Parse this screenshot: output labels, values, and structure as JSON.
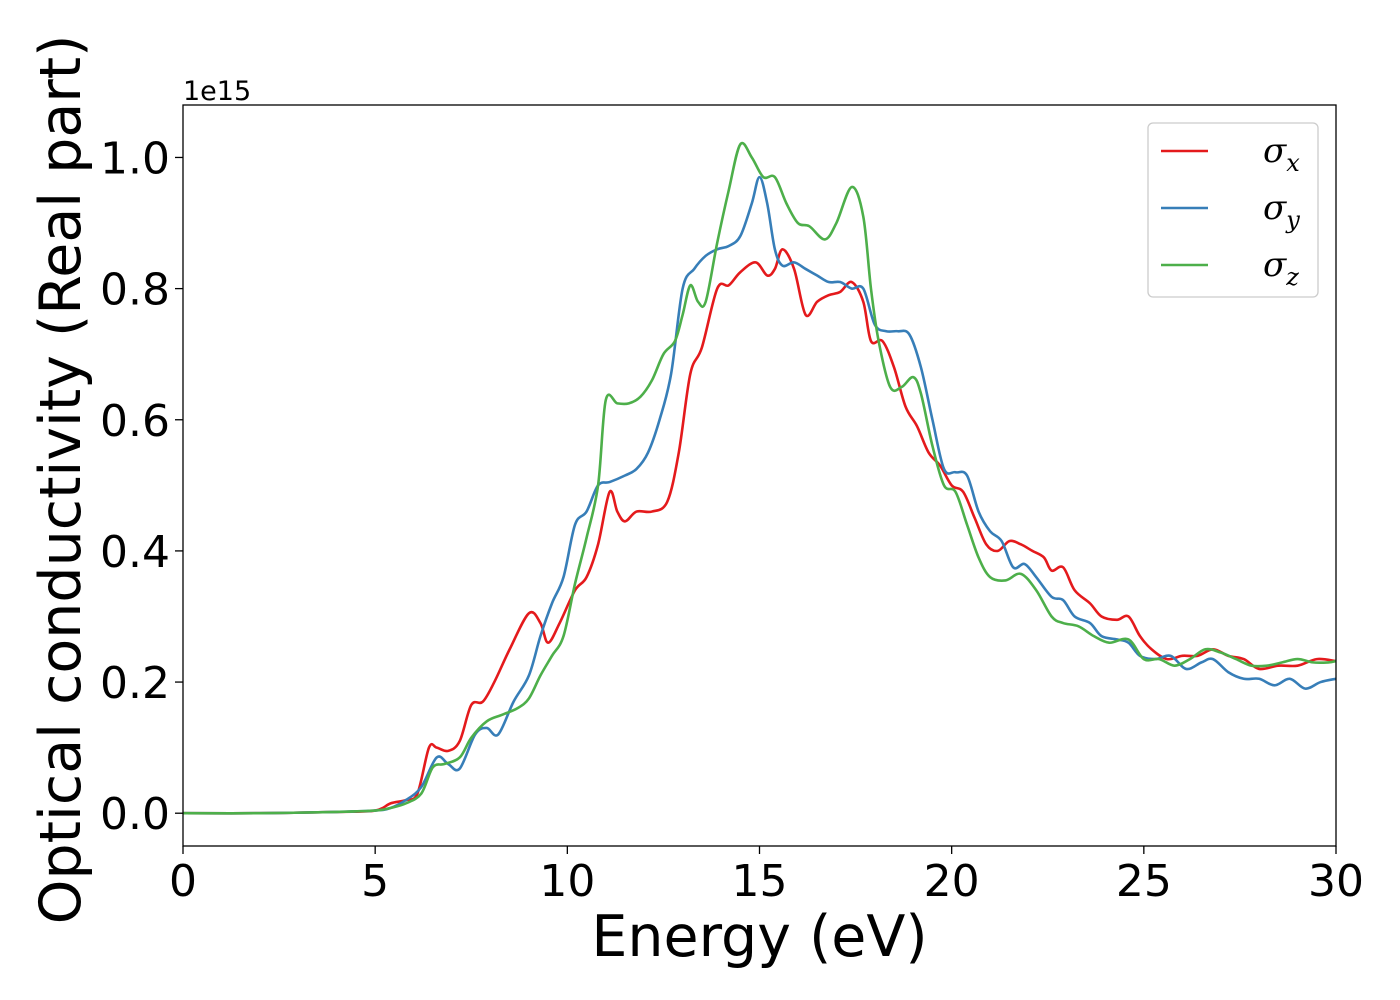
{
  "chart_data": {
    "type": "line",
    "title": "",
    "xlabel": "Energy (eV)",
    "ylabel": "Optical conductivity (Real part)",
    "y_offset_label": "1e15",
    "y_scale": 1000000000000000.0,
    "xlim": [
      0,
      30
    ],
    "ylim": [
      -0.05,
      1.08
    ],
    "xticks": [
      0,
      5,
      10,
      15,
      20,
      25,
      30
    ],
    "xtick_labels": [
      "0",
      "5",
      "10",
      "15",
      "20",
      "25",
      "30"
    ],
    "yticks": [
      0.0,
      0.2,
      0.4,
      0.6,
      0.8,
      1.0
    ],
    "ytick_labels": [
      "0.0",
      "0.2",
      "0.4",
      "0.6",
      "0.8",
      "1.0"
    ],
    "grid": false,
    "legend_position": "top-right",
    "series": [
      {
        "name": "σx",
        "label_base": "σ",
        "label_sub": "x",
        "color": "#e41a1c",
        "points": [
          [
            0,
            0
          ],
          [
            2,
            0
          ],
          [
            4,
            0.002
          ],
          [
            5,
            0.004
          ],
          [
            5.4,
            0.015
          ],
          [
            5.8,
            0.02
          ],
          [
            6.1,
            0.03
          ],
          [
            6.4,
            0.1
          ],
          [
            6.6,
            0.1
          ],
          [
            6.9,
            0.095
          ],
          [
            7.2,
            0.11
          ],
          [
            7.5,
            0.165
          ],
          [
            7.8,
            0.17
          ],
          [
            8.1,
            0.2
          ],
          [
            8.5,
            0.25
          ],
          [
            9.0,
            0.305
          ],
          [
            9.3,
            0.29
          ],
          [
            9.5,
            0.26
          ],
          [
            9.8,
            0.29
          ],
          [
            10.2,
            0.34
          ],
          [
            10.5,
            0.36
          ],
          [
            10.8,
            0.41
          ],
          [
            11.1,
            0.49
          ],
          [
            11.3,
            0.46
          ],
          [
            11.5,
            0.445
          ],
          [
            11.8,
            0.46
          ],
          [
            12.2,
            0.46
          ],
          [
            12.6,
            0.475
          ],
          [
            12.9,
            0.55
          ],
          [
            13.2,
            0.67
          ],
          [
            13.5,
            0.71
          ],
          [
            13.9,
            0.8
          ],
          [
            14.2,
            0.805
          ],
          [
            14.5,
            0.825
          ],
          [
            14.9,
            0.84
          ],
          [
            15.2,
            0.82
          ],
          [
            15.4,
            0.83
          ],
          [
            15.6,
            0.86
          ],
          [
            15.9,
            0.83
          ],
          [
            16.2,
            0.76
          ],
          [
            16.5,
            0.78
          ],
          [
            16.8,
            0.79
          ],
          [
            17.1,
            0.795
          ],
          [
            17.4,
            0.81
          ],
          [
            17.7,
            0.78
          ],
          [
            17.9,
            0.72
          ],
          [
            18.2,
            0.72
          ],
          [
            18.5,
            0.68
          ],
          [
            18.8,
            0.62
          ],
          [
            19.1,
            0.59
          ],
          [
            19.4,
            0.55
          ],
          [
            19.7,
            0.53
          ],
          [
            20.0,
            0.5
          ],
          [
            20.3,
            0.49
          ],
          [
            20.6,
            0.45
          ],
          [
            20.9,
            0.41
          ],
          [
            21.2,
            0.4
          ],
          [
            21.5,
            0.415
          ],
          [
            21.8,
            0.41
          ],
          [
            22.1,
            0.4
          ],
          [
            22.4,
            0.39
          ],
          [
            22.6,
            0.37
          ],
          [
            22.9,
            0.375
          ],
          [
            23.2,
            0.34
          ],
          [
            23.6,
            0.32
          ],
          [
            23.9,
            0.3
          ],
          [
            24.3,
            0.295
          ],
          [
            24.6,
            0.3
          ],
          [
            24.9,
            0.27
          ],
          [
            25.2,
            0.25
          ],
          [
            25.6,
            0.235
          ],
          [
            26.0,
            0.24
          ],
          [
            26.4,
            0.24
          ],
          [
            26.8,
            0.25
          ],
          [
            27.2,
            0.24
          ],
          [
            27.6,
            0.235
          ],
          [
            28.0,
            0.22
          ],
          [
            28.5,
            0.225
          ],
          [
            29.0,
            0.225
          ],
          [
            29.5,
            0.235
          ],
          [
            30,
            0.232
          ]
        ]
      },
      {
        "name": "σy",
        "label_base": "σ",
        "label_sub": "y",
        "color": "#377eb8",
        "points": [
          [
            0,
            0
          ],
          [
            2,
            0
          ],
          [
            4,
            0.002
          ],
          [
            5,
            0.004
          ],
          [
            5.4,
            0.008
          ],
          [
            5.8,
            0.02
          ],
          [
            6.2,
            0.04
          ],
          [
            6.6,
            0.085
          ],
          [
            6.9,
            0.075
          ],
          [
            7.2,
            0.068
          ],
          [
            7.6,
            0.12
          ],
          [
            7.9,
            0.13
          ],
          [
            8.2,
            0.12
          ],
          [
            8.6,
            0.17
          ],
          [
            9.0,
            0.21
          ],
          [
            9.3,
            0.27
          ],
          [
            9.6,
            0.32
          ],
          [
            9.9,
            0.36
          ],
          [
            10.2,
            0.44
          ],
          [
            10.5,
            0.46
          ],
          [
            10.8,
            0.5
          ],
          [
            11.1,
            0.505
          ],
          [
            11.5,
            0.515
          ],
          [
            11.8,
            0.525
          ],
          [
            12.1,
            0.55
          ],
          [
            12.4,
            0.6
          ],
          [
            12.7,
            0.67
          ],
          [
            13.0,
            0.8
          ],
          [
            13.3,
            0.83
          ],
          [
            13.6,
            0.85
          ],
          [
            13.9,
            0.86
          ],
          [
            14.2,
            0.865
          ],
          [
            14.5,
            0.88
          ],
          [
            14.8,
            0.93
          ],
          [
            15.0,
            0.97
          ],
          [
            15.2,
            0.93
          ],
          [
            15.4,
            0.86
          ],
          [
            15.6,
            0.835
          ],
          [
            15.9,
            0.84
          ],
          [
            16.2,
            0.83
          ],
          [
            16.5,
            0.82
          ],
          [
            16.8,
            0.81
          ],
          [
            17.1,
            0.81
          ],
          [
            17.4,
            0.8
          ],
          [
            17.7,
            0.8
          ],
          [
            18.0,
            0.745
          ],
          [
            18.3,
            0.735
          ],
          [
            18.6,
            0.735
          ],
          [
            18.9,
            0.73
          ],
          [
            19.2,
            0.68
          ],
          [
            19.5,
            0.6
          ],
          [
            19.8,
            0.525
          ],
          [
            20.1,
            0.52
          ],
          [
            20.4,
            0.515
          ],
          [
            20.7,
            0.46
          ],
          [
            21.0,
            0.43
          ],
          [
            21.3,
            0.415
          ],
          [
            21.6,
            0.375
          ],
          [
            21.9,
            0.38
          ],
          [
            22.2,
            0.36
          ],
          [
            22.6,
            0.33
          ],
          [
            22.9,
            0.325
          ],
          [
            23.2,
            0.3
          ],
          [
            23.6,
            0.29
          ],
          [
            23.9,
            0.27
          ],
          [
            24.3,
            0.265
          ],
          [
            24.6,
            0.26
          ],
          [
            24.9,
            0.24
          ],
          [
            25.3,
            0.235
          ],
          [
            25.7,
            0.24
          ],
          [
            26.1,
            0.22
          ],
          [
            26.5,
            0.23
          ],
          [
            26.8,
            0.235
          ],
          [
            27.2,
            0.215
          ],
          [
            27.6,
            0.205
          ],
          [
            28.0,
            0.205
          ],
          [
            28.4,
            0.195
          ],
          [
            28.8,
            0.205
          ],
          [
            29.2,
            0.19
          ],
          [
            29.6,
            0.2
          ],
          [
            30,
            0.205
          ]
        ]
      },
      {
        "name": "σz",
        "label_base": "σ",
        "label_sub": "z",
        "color": "#4daf4a",
        "points": [
          [
            0,
            0
          ],
          [
            2,
            0
          ],
          [
            4,
            0.002
          ],
          [
            5,
            0.004
          ],
          [
            5.4,
            0.008
          ],
          [
            5.8,
            0.015
          ],
          [
            6.2,
            0.03
          ],
          [
            6.5,
            0.07
          ],
          [
            6.8,
            0.075
          ],
          [
            7.2,
            0.085
          ],
          [
            7.5,
            0.115
          ],
          [
            7.9,
            0.14
          ],
          [
            8.3,
            0.15
          ],
          [
            8.7,
            0.16
          ],
          [
            9.0,
            0.175
          ],
          [
            9.3,
            0.21
          ],
          [
            9.6,
            0.24
          ],
          [
            9.9,
            0.27
          ],
          [
            10.2,
            0.35
          ],
          [
            10.5,
            0.42
          ],
          [
            10.8,
            0.5
          ],
          [
            11.0,
            0.63
          ],
          [
            11.3,
            0.625
          ],
          [
            11.6,
            0.625
          ],
          [
            11.9,
            0.635
          ],
          [
            12.2,
            0.66
          ],
          [
            12.5,
            0.7
          ],
          [
            12.8,
            0.72
          ],
          [
            13.0,
            0.76
          ],
          [
            13.2,
            0.805
          ],
          [
            13.4,
            0.78
          ],
          [
            13.6,
            0.78
          ],
          [
            13.9,
            0.87
          ],
          [
            14.2,
            0.95
          ],
          [
            14.5,
            1.02
          ],
          [
            14.8,
            1.0
          ],
          [
            15.1,
            0.97
          ],
          [
            15.4,
            0.97
          ],
          [
            15.7,
            0.93
          ],
          [
            16.0,
            0.9
          ],
          [
            16.3,
            0.895
          ],
          [
            16.7,
            0.875
          ],
          [
            17.0,
            0.9
          ],
          [
            17.4,
            0.955
          ],
          [
            17.7,
            0.91
          ],
          [
            17.9,
            0.8
          ],
          [
            18.1,
            0.72
          ],
          [
            18.4,
            0.65
          ],
          [
            18.7,
            0.65
          ],
          [
            19.0,
            0.665
          ],
          [
            19.2,
            0.64
          ],
          [
            19.5,
            0.56
          ],
          [
            19.8,
            0.5
          ],
          [
            20.1,
            0.49
          ],
          [
            20.4,
            0.44
          ],
          [
            20.7,
            0.39
          ],
          [
            21.0,
            0.36
          ],
          [
            21.4,
            0.355
          ],
          [
            21.8,
            0.365
          ],
          [
            22.2,
            0.34
          ],
          [
            22.6,
            0.3
          ],
          [
            22.9,
            0.29
          ],
          [
            23.3,
            0.285
          ],
          [
            23.7,
            0.27
          ],
          [
            24.1,
            0.26
          ],
          [
            24.6,
            0.265
          ],
          [
            25.0,
            0.235
          ],
          [
            25.4,
            0.235
          ],
          [
            25.8,
            0.225
          ],
          [
            26.2,
            0.235
          ],
          [
            26.6,
            0.25
          ],
          [
            27.0,
            0.245
          ],
          [
            27.4,
            0.235
          ],
          [
            27.8,
            0.225
          ],
          [
            28.2,
            0.225
          ],
          [
            28.6,
            0.23
          ],
          [
            29.0,
            0.235
          ],
          [
            29.4,
            0.23
          ],
          [
            29.8,
            0.23
          ],
          [
            30,
            0.232
          ]
        ]
      }
    ]
  }
}
